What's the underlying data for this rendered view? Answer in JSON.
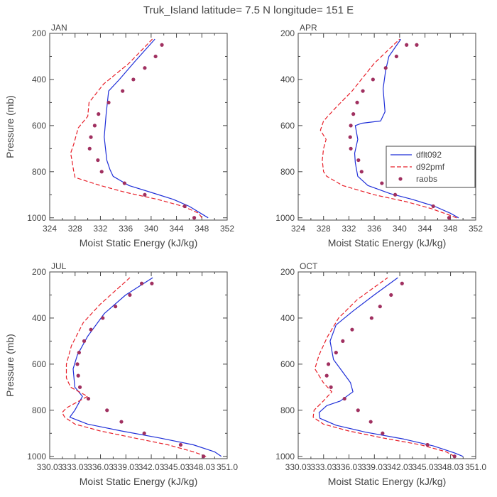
{
  "figure": {
    "title": "Truk_Island  latitude= 7.5 N longitude= 151 E",
    "colors": {
      "dflt": "#1f2fd8",
      "d92": "#e8202a",
      "raobs": "#a03060",
      "axis": "#444444"
    }
  },
  "legend": {
    "entries": [
      {
        "label": "dflt092",
        "series_key": "dflt"
      },
      {
        "label": "d92pmf",
        "series_key": "d92"
      },
      {
        "label": "raobs",
        "series_key": "raobs"
      }
    ]
  },
  "chart_data": [
    {
      "type": "line",
      "panel": "JAN",
      "xlabel": "Moist Static Energy (kJ/kg)",
      "ylabel": "Pressure (mb)",
      "xlim": [
        324,
        352
      ],
      "ylim": [
        1010,
        200
      ],
      "xticks": [
        324,
        328,
        332,
        336,
        340,
        344,
        348,
        352
      ],
      "xtick_labels": [
        "324",
        "328",
        "332",
        "336",
        "340",
        "344",
        "348",
        "352"
      ],
      "yticks": [
        200,
        400,
        600,
        800,
        1000
      ],
      "ytick_labels": [
        "200",
        "400",
        "600",
        "800",
        "1000"
      ],
      "series": [
        {
          "name": "dflt092",
          "key": "dflt",
          "style": "solid",
          "x": [
            349.0,
            347.8,
            346.0,
            343.5,
            340.0,
            336.5,
            334.0,
            333.5,
            333.0,
            332.8,
            332.6,
            332.9,
            333.3,
            335.0,
            337.5,
            340.6
          ],
          "y": [
            1000,
            980,
            950,
            920,
            890,
            860,
            820,
            790,
            750,
            700,
            650,
            550,
            450,
            400,
            320,
            225
          ]
        },
        {
          "name": "d92pmf",
          "key": "d92",
          "style": "dashed",
          "x": [
            348.0,
            347.5,
            345.0,
            341.0,
            336.0,
            332.0,
            328.0,
            327.8,
            327.5,
            327.3,
            327.8,
            328.5,
            330.0,
            330.2,
            332.5,
            336.5,
            340.2
          ],
          "y": [
            1000,
            980,
            950,
            920,
            890,
            860,
            825,
            800,
            750,
            720,
            680,
            610,
            560,
            500,
            420,
            330,
            225
          ]
        },
        {
          "name": "raobs",
          "key": "raobs",
          "style": "markers",
          "x": [
            346.8,
            345.3,
            339.0,
            335.8,
            332.2,
            331.6,
            330.3,
            330.5,
            331.1,
            331.7,
            333.3,
            335.5,
            337.2,
            339.0,
            340.7,
            341.7
          ],
          "y": [
            1000,
            950,
            900,
            850,
            800,
            750,
            700,
            650,
            600,
            550,
            500,
            450,
            400,
            350,
            300,
            250
          ]
        }
      ]
    },
    {
      "type": "line",
      "panel": "APR",
      "xlabel": "Moist Static Energy (kJ/kg)",
      "ylabel": "",
      "xlim": [
        324,
        352
      ],
      "ylim": [
        1010,
        200
      ],
      "xticks": [
        324,
        328,
        332,
        336,
        340,
        344,
        348,
        352
      ],
      "xtick_labels": [
        "324",
        "328",
        "332",
        "336",
        "340",
        "344",
        "348",
        "352"
      ],
      "yticks": [
        200,
        400,
        600,
        800,
        1000
      ],
      "ytick_labels": [
        "200",
        "400",
        "600",
        "800",
        "1000"
      ],
      "series": [
        {
          "name": "dflt092",
          "key": "dflt",
          "style": "solid",
          "x": [
            349.3,
            348.0,
            345.5,
            342.0,
            338.5,
            335.0,
            333.4,
            333.2,
            333.0,
            332.9,
            333.4,
            333.0,
            334.0,
            337.0,
            337.7,
            337.4,
            337.8,
            338.3,
            340.2
          ],
          "y": [
            1000,
            980,
            950,
            920,
            895,
            860,
            820,
            790,
            760,
            720,
            660,
            600,
            590,
            580,
            540,
            440,
            360,
            300,
            225
          ]
        },
        {
          "name": "d92pmf",
          "key": "d92",
          "style": "dashed",
          "x": [
            349.0,
            348.0,
            345.0,
            341.0,
            336.0,
            331.0,
            328.5,
            328.0,
            327.8,
            328.0,
            328.4,
            327.5,
            328.0,
            330.0,
            332.5,
            336.0,
            340.0
          ],
          "y": [
            1000,
            990,
            960,
            930,
            900,
            860,
            820,
            800,
            750,
            700,
            660,
            620,
            580,
            520,
            450,
            330,
            225
          ]
        },
        {
          "name": "raobs",
          "key": "raobs",
          "style": "markers",
          "x": [
            347.8,
            345.3,
            339.3,
            337.2,
            334.0,
            333.5,
            332.3,
            332.2,
            332.3,
            332.7,
            333.3,
            334.2,
            335.8,
            337.8,
            339.5,
            341.1,
            342.7
          ],
          "y": [
            1000,
            950,
            900,
            850,
            800,
            750,
            700,
            650,
            600,
            550,
            500,
            450,
            400,
            350,
            300,
            250,
            250
          ]
        }
      ]
    },
    {
      "type": "line",
      "panel": "JUL",
      "xlabel": "Moist Static Energy (kJ/kg)",
      "ylabel": "Pressure (mb)",
      "xlim": [
        330.03,
        351.0
      ],
      "ylim": [
        1010,
        200
      ],
      "xticks": [
        330.03,
        333.03,
        336.03,
        339.03,
        342.03,
        345.03,
        348.03,
        351.0
      ],
      "xtick_labels": [
        "330.03",
        "333.03",
        "336.03",
        "339.03",
        "342.03",
        "345.03",
        "348.03",
        "351.0"
      ],
      "yticks": [
        200,
        400,
        600,
        800,
        1000
      ],
      "ytick_labels": [
        "200",
        "400",
        "600",
        "800",
        "1000"
      ],
      "series": [
        {
          "name": "dflt092",
          "key": "dflt",
          "style": "solid",
          "x": [
            350.3,
            349.5,
            347.0,
            343.0,
            338.5,
            334.5,
            332.4,
            333.0,
            333.9,
            333.0,
            332.9,
            332.8,
            333.3,
            334.5,
            336.5,
            339.0,
            342.2
          ],
          "y": [
            1000,
            980,
            950,
            920,
            890,
            860,
            830,
            800,
            740,
            700,
            660,
            620,
            560,
            480,
            380,
            300,
            225
          ]
        },
        {
          "name": "d92pmf",
          "key": "d92",
          "style": "dashed",
          "x": [
            348.5,
            347.0,
            344.0,
            340.0,
            336.0,
            333.0,
            331.8,
            331.5,
            332.0,
            333.5,
            334.5,
            332.5,
            332.0,
            332.0,
            332.6,
            334.0,
            336.0,
            339.5
          ],
          "y": [
            1000,
            980,
            950,
            920,
            890,
            860,
            830,
            810,
            790,
            760,
            740,
            700,
            660,
            600,
            520,
            420,
            340,
            225
          ]
        },
        {
          "name": "raobs",
          "key": "raobs",
          "style": "markers",
          "x": [
            348.2,
            345.5,
            341.2,
            338.5,
            336.8,
            334.6,
            333.6,
            333.4,
            333.3,
            333.5,
            334.1,
            334.9,
            336.3,
            337.8,
            339.5,
            340.9,
            342.1
          ],
          "y": [
            1000,
            950,
            900,
            850,
            800,
            750,
            700,
            650,
            600,
            550,
            500,
            450,
            400,
            350,
            300,
            250,
            250
          ]
        }
      ]
    },
    {
      "type": "line",
      "panel": "OCT",
      "xlabel": "Moist Static Energy (kJ/kg)",
      "ylabel": "",
      "xlim": [
        330.03,
        351.0
      ],
      "ylim": [
        1010,
        200
      ],
      "xticks": [
        330.03,
        333.03,
        336.03,
        339.03,
        342.03,
        345.03,
        348.03,
        351.0
      ],
      "xtick_labels": [
        "330.03",
        "333.03",
        "336.03",
        "339.03",
        "342.03",
        "345.03",
        "348.03",
        "351.0"
      ],
      "yticks": [
        200,
        400,
        600,
        800,
        1000
      ],
      "ytick_labels": [
        "200",
        "400",
        "600",
        "800",
        "1000"
      ],
      "series": [
        {
          "name": "dflt092",
          "key": "dflt",
          "style": "solid",
          "x": [
            349.5,
            348.5,
            346.0,
            342.5,
            338.0,
            334.5,
            332.6,
            332.5,
            333.4,
            335.0,
            336.5,
            336.2,
            335.0,
            334.2,
            333.8,
            334.5,
            336.5,
            339.0,
            341.8
          ],
          "y": [
            1000,
            985,
            955,
            925,
            895,
            865,
            835,
            810,
            780,
            760,
            720,
            680,
            620,
            580,
            500,
            430,
            370,
            300,
            225
          ]
        },
        {
          "name": "d92pmf",
          "key": "d92",
          "style": "dashed",
          "x": [
            348.5,
            347.5,
            344.5,
            340.0,
            336.0,
            333.0,
            331.8,
            331.9,
            333.0,
            334.0,
            333.0,
            332.0,
            332.5,
            333.5,
            334.8,
            337.0,
            340.6
          ],
          "y": [
            1000,
            980,
            950,
            920,
            890,
            860,
            830,
            800,
            760,
            720,
            680,
            620,
            560,
            480,
            400,
            320,
            225
          ]
        },
        {
          "name": "raobs",
          "key": "raobs",
          "style": "markers",
          "x": [
            348.5,
            345.3,
            340.0,
            338.6,
            337.1,
            335.5,
            333.9,
            333.4,
            333.6,
            334.5,
            335.3,
            336.4,
            338.7,
            339.7,
            341.0,
            342.3
          ],
          "y": [
            1000,
            950,
            900,
            850,
            800,
            750,
            700,
            650,
            600,
            550,
            500,
            450,
            400,
            350,
            300,
            250
          ]
        }
      ]
    }
  ]
}
